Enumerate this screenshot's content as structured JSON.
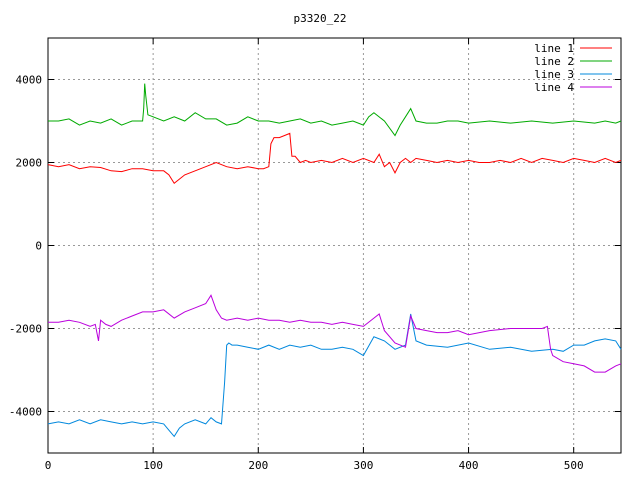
{
  "chart_data": {
    "type": "line",
    "title": "p3320_22",
    "xlabel": "",
    "ylabel": "",
    "xlim": [
      0,
      545
    ],
    "ylim": [
      -5000,
      5000
    ],
    "xticks": [
      0,
      100,
      200,
      300,
      400,
      500
    ],
    "yticks": [
      -4000,
      -2000,
      0,
      2000,
      4000
    ],
    "grid": true,
    "legend_position": "top-right",
    "series": [
      {
        "name": "line 1",
        "color": "#ff0000",
        "x": [
          0,
          10,
          20,
          30,
          40,
          50,
          60,
          70,
          80,
          90,
          100,
          110,
          115,
          120,
          125,
          130,
          140,
          150,
          160,
          170,
          180,
          190,
          200,
          205,
          210,
          212,
          215,
          220,
          225,
          230,
          232,
          235,
          240,
          245,
          250,
          260,
          270,
          280,
          290,
          300,
          310,
          315,
          320,
          325,
          330,
          335,
          340,
          345,
          350,
          360,
          370,
          380,
          390,
          400,
          410,
          420,
          430,
          440,
          450,
          460,
          470,
          480,
          490,
          500,
          510,
          520,
          530,
          540,
          545
        ],
        "y": [
          1950,
          1900,
          1950,
          1850,
          1900,
          1880,
          1800,
          1780,
          1850,
          1850,
          1800,
          1800,
          1700,
          1500,
          1600,
          1700,
          1800,
          1900,
          2000,
          1900,
          1850,
          1900,
          1850,
          1850,
          1900,
          2450,
          2600,
          2600,
          2650,
          2700,
          2150,
          2150,
          2000,
          2050,
          2000,
          2050,
          2000,
          2100,
          2000,
          2100,
          2000,
          2200,
          1900,
          2000,
          1750,
          2000,
          2100,
          2000,
          2100,
          2050,
          2000,
          2050,
          2000,
          2050,
          2000,
          2000,
          2050,
          2000,
          2100,
          2000,
          2100,
          2050,
          2000,
          2100,
          2050,
          2000,
          2100,
          2000,
          2050
        ]
      },
      {
        "name": "line 2",
        "color": "#00aa00",
        "x": [
          0,
          10,
          20,
          30,
          40,
          50,
          60,
          70,
          80,
          90,
          91,
          92,
          93,
          95,
          100,
          110,
          120,
          130,
          140,
          150,
          160,
          170,
          180,
          190,
          200,
          210,
          220,
          230,
          240,
          250,
          260,
          270,
          280,
          290,
          300,
          305,
          310,
          320,
          330,
          335,
          340,
          345,
          350,
          360,
          370,
          380,
          390,
          400,
          420,
          440,
          460,
          480,
          500,
          520,
          530,
          540,
          545
        ],
        "y": [
          3000,
          3000,
          3050,
          2900,
          3000,
          2950,
          3050,
          2900,
          3000,
          3000,
          3300,
          3900,
          3600,
          3150,
          3100,
          3000,
          3100,
          3000,
          3200,
          3050,
          3050,
          2900,
          2950,
          3100,
          3000,
          3000,
          2950,
          3000,
          3050,
          2950,
          3000,
          2900,
          2950,
          3000,
          2900,
          3100,
          3200,
          3000,
          2650,
          2900,
          3100,
          3300,
          3000,
          2950,
          2950,
          3000,
          3000,
          2950,
          3000,
          2950,
          3000,
          2950,
          3000,
          2950,
          3000,
          2950,
          3000
        ]
      },
      {
        "name": "line 3",
        "color": "#0088dd",
        "x": [
          0,
          10,
          20,
          30,
          40,
          50,
          60,
          70,
          80,
          90,
          100,
          110,
          115,
          120,
          125,
          130,
          140,
          150,
          155,
          160,
          165,
          168,
          170,
          172,
          175,
          180,
          190,
          200,
          210,
          220,
          230,
          240,
          250,
          260,
          270,
          280,
          290,
          300,
          310,
          320,
          330,
          340,
          345,
          350,
          360,
          380,
          400,
          420,
          440,
          460,
          480,
          490,
          500,
          510,
          520,
          530,
          540,
          545
        ],
        "y": [
          -4300,
          -4250,
          -4300,
          -4200,
          -4300,
          -4200,
          -4250,
          -4300,
          -4250,
          -4300,
          -4250,
          -4300,
          -4450,
          -4600,
          -4400,
          -4300,
          -4200,
          -4300,
          -4150,
          -4250,
          -4300,
          -3300,
          -2400,
          -2350,
          -2400,
          -2400,
          -2450,
          -2500,
          -2400,
          -2500,
          -2400,
          -2450,
          -2400,
          -2500,
          -2500,
          -2450,
          -2500,
          -2650,
          -2200,
          -2300,
          -2500,
          -2400,
          -1650,
          -2300,
          -2400,
          -2450,
          -2350,
          -2500,
          -2450,
          -2550,
          -2500,
          -2550,
          -2400,
          -2400,
          -2300,
          -2250,
          -2300,
          -2500
        ]
      },
      {
        "name": "line 4",
        "color": "#bb00dd",
        "x": [
          0,
          10,
          20,
          30,
          40,
          45,
          48,
          50,
          55,
          60,
          70,
          80,
          90,
          100,
          110,
          120,
          130,
          140,
          150,
          155,
          160,
          165,
          170,
          180,
          190,
          200,
          210,
          220,
          230,
          240,
          250,
          260,
          270,
          280,
          290,
          300,
          310,
          315,
          320,
          330,
          340,
          345,
          350,
          360,
          370,
          380,
          390,
          400,
          420,
          440,
          460,
          470,
          475,
          478,
          480,
          490,
          500,
          510,
          520,
          530,
          540,
          545
        ],
        "y": [
          -1850,
          -1850,
          -1800,
          -1850,
          -1950,
          -1900,
          -2300,
          -1800,
          -1900,
          -1950,
          -1800,
          -1700,
          -1600,
          -1600,
          -1550,
          -1750,
          -1600,
          -1500,
          -1400,
          -1200,
          -1550,
          -1750,
          -1800,
          -1750,
          -1800,
          -1750,
          -1800,
          -1800,
          -1850,
          -1800,
          -1850,
          -1850,
          -1900,
          -1850,
          -1900,
          -1950,
          -1750,
          -1650,
          -2050,
          -2350,
          -2450,
          -1700,
          -2000,
          -2050,
          -2100,
          -2100,
          -2050,
          -2150,
          -2050,
          -2000,
          -2000,
          -2000,
          -1950,
          -2500,
          -2650,
          -2800,
          -2850,
          -2900,
          -3050,
          -3050,
          -2900,
          -2850
        ]
      }
    ]
  }
}
